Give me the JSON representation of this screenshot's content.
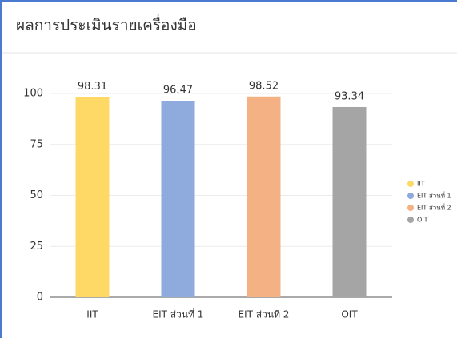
{
  "chart_data": {
    "type": "bar",
    "title": "ผลการประเมินรายเครื่องมือ",
    "categories": [
      "IIT",
      "EIT ส่วนที่ 1",
      "EIT ส่วนที่ 2",
      "OIT"
    ],
    "values": [
      98.31,
      96.47,
      98.52,
      93.34
    ],
    "colors": [
      "#ffd966",
      "#8faadc",
      "#f4b183",
      "#a5a5a5"
    ],
    "ylim": [
      0,
      100
    ],
    "yticks": [
      0,
      25,
      50,
      75,
      100
    ],
    "grid": true,
    "legend": "right"
  }
}
